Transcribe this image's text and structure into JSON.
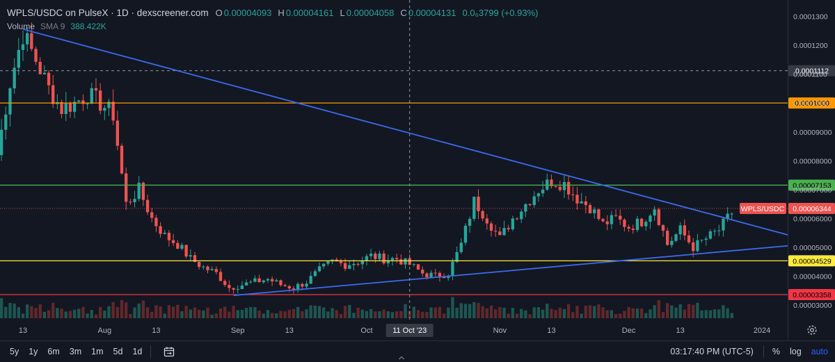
{
  "header": {
    "title": "WPLS/USDC on PulseX · 1D · dexscreener.com",
    "open_label": "O",
    "open_value": "0.00004093",
    "high_label": "H",
    "high_value": "0.00004161",
    "low_label": "L",
    "low_value": "0.00004058",
    "close_label": "C",
    "close_value": "0.00004131",
    "change_value": "0.0₆3799 (+0.93%)"
  },
  "volume_legend": {
    "label": "Volume",
    "sma": "SMA 9",
    "value": "388.422K"
  },
  "chart_data": {
    "type": "candlestick",
    "title": "WPLS/USDC on PulseX · 1D · dexscreener.com",
    "y_ticks": [
      "0.0001300",
      "0.0001200",
      "0.0001100",
      "0.0001000",
      "0.00009000",
      "0.00008000",
      "0.00007000",
      "0.00006000",
      "0.00005000",
      "0.00004000",
      "0.00003000"
    ],
    "y_tick_values": [
      0.00013,
      0.00012,
      0.00011,
      0.0001,
      9e-05,
      8e-05,
      7e-05,
      6e-05,
      5e-05,
      4e-05,
      3e-05
    ],
    "ylim": [
      2.54e-05,
      0.0001357
    ],
    "x_ticks": [
      "13",
      "Aug",
      "13",
      "Sep",
      "13",
      "Oct",
      "Nov",
      "13",
      "Dec",
      "13",
      "2024"
    ],
    "x_tick_dates": [
      "2023-07-13",
      "2023-08-01",
      "2023-08-13",
      "2023-09-01",
      "2023-09-13",
      "2023-10-01",
      "2023-11-01",
      "2023-11-13",
      "2023-12-01",
      "2023-12-13",
      "2024-01-01"
    ],
    "first_candle_date": "2023-07-07",
    "last_candle_date": "2023-12-25",
    "closes_every_3_days": [
      8.2e-05,
      0.000107,
      0.000124,
      0.000115,
      0.000105,
      9.8e-05,
      0.0001,
      0.000103,
      0.0001,
      9.6e-05,
      6.5e-05,
      7e-05,
      6e-05,
      5.4e-05,
      5.1e-05,
      4.6e-05,
      4.3e-05,
      4.1e-05,
      3.6e-05,
      3.7e-05,
      3.8e-05,
      3.9e-05,
      3.7e-05,
      3.6e-05,
      3.8e-05,
      4.2e-05,
      4.5e-05,
      4.4e-05,
      4.5e-05,
      4.7e-05,
      4.6e-05,
      4.6e-05,
      4.4e-05,
      4.1e-05,
      4e-05,
      4.1e-05,
      5.1e-05,
      6.6e-05,
      6e-05,
      5.3e-05,
      6e-05,
      6.5e-05,
      7e-05,
      7.3e-05,
      7.2e-05,
      6.7e-05,
      6.4e-05,
      5.8e-05,
      6e-05,
      5.7e-05,
      5.9e-05,
      6.4e-05,
      5.1e-05,
      5.6e-05,
      5e-05,
      5.3e-05,
      5.6e-05,
      6.2e-05,
      6.4e-05
    ],
    "horizontal_levels": [
      {
        "label": "0.0001000",
        "value": 0.0001,
        "color": "#ff9800"
      },
      {
        "label": "0.00007153",
        "value": 7.153e-05,
        "color": "#4caf50"
      },
      {
        "label": "0.00004529",
        "value": 4.529e-05,
        "color": "#ffeb3b"
      },
      {
        "label": "0.00003358",
        "value": 3.358e-05,
        "color": "#f23645"
      }
    ],
    "dashed_level": {
      "label": "0.0001112",
      "value": 0.0001112
    },
    "price_line": {
      "label": "WPLS/USDC",
      "value_label": "0.00006344",
      "value": 6.344e-05,
      "color": "#ef5350"
    },
    "trendlines": [
      {
        "from": [
          "2023-07-13",
          0.0001256
        ],
        "to": [
          "2024-01-07",
          5.43e-05
        ]
      },
      {
        "from": [
          "2023-08-31",
          3.33e-05
        ],
        "to": [
          "2024-01-07",
          5.05e-05
        ]
      }
    ],
    "crosshair": {
      "date": "2023-10-11",
      "date_label": "11 Oct '23"
    },
    "grid": false,
    "legend": "top-left",
    "colors": {
      "up": "#26a69a",
      "down": "#ef5350",
      "background": "#131722",
      "trendline": "#3b6cf0"
    }
  },
  "timeframes": [
    "5y",
    "1y",
    "6m",
    "3m",
    "1m",
    "5d",
    "1d"
  ],
  "footer": {
    "clock": "03:17:40 PM (UTC-5)",
    "percent": "%",
    "log": "log",
    "auto": "auto"
  },
  "icons": {
    "calendar": "calendar-range-icon",
    "settings": "gear-icon",
    "scroll": "chevron-up-icon"
  }
}
